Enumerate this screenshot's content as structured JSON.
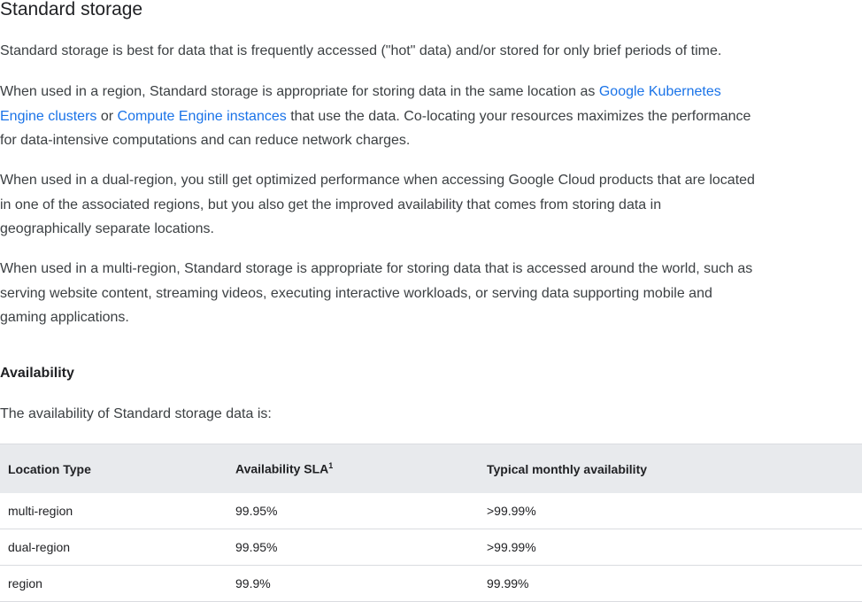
{
  "title": "Standard storage",
  "p1": "Standard storage is best for data that is frequently accessed (\"hot\" data) and/or stored for only brief periods of time.",
  "p2": {
    "t1": "When used in a region, Standard storage is appropriate for storing data in the same location as ",
    "link1a": "Google Kubernetes",
    "link1b": "Engine clusters",
    "t2": " or ",
    "link2": "Compute Engine instances",
    "t3": " that use the data. Co-locating your resources maximizes the performance",
    "t4": "for data-intensive computations and can reduce network charges."
  },
  "p3": [
    "When used in a dual-region, you still get optimized performance when accessing Google Cloud products that are located",
    "in one of the associated regions, but you also get the improved availability that comes from storing data in",
    "geographically separate locations."
  ],
  "p4": [
    "When used in a multi-region, Standard storage is appropriate for storing data that is accessed around the world, such as",
    "serving website content, streaming videos, executing interactive workloads, or serving data supporting mobile and",
    "gaming applications."
  ],
  "availability": {
    "heading": "Availability",
    "intro": "The availability of Standard storage data is:",
    "headers": [
      "Location Type",
      "Availability SLA",
      "Typical monthly availability"
    ],
    "sla_footnote": "1",
    "rows": [
      [
        "multi-region",
        "99.95%",
        ">99.99%"
      ],
      [
        "dual-region",
        "99.95%",
        ">99.99%"
      ],
      [
        "region",
        "99.9%",
        "99.99%"
      ]
    ]
  },
  "colors": {
    "link": "#1a73e8",
    "table_header_bg": "#e8eaed"
  }
}
